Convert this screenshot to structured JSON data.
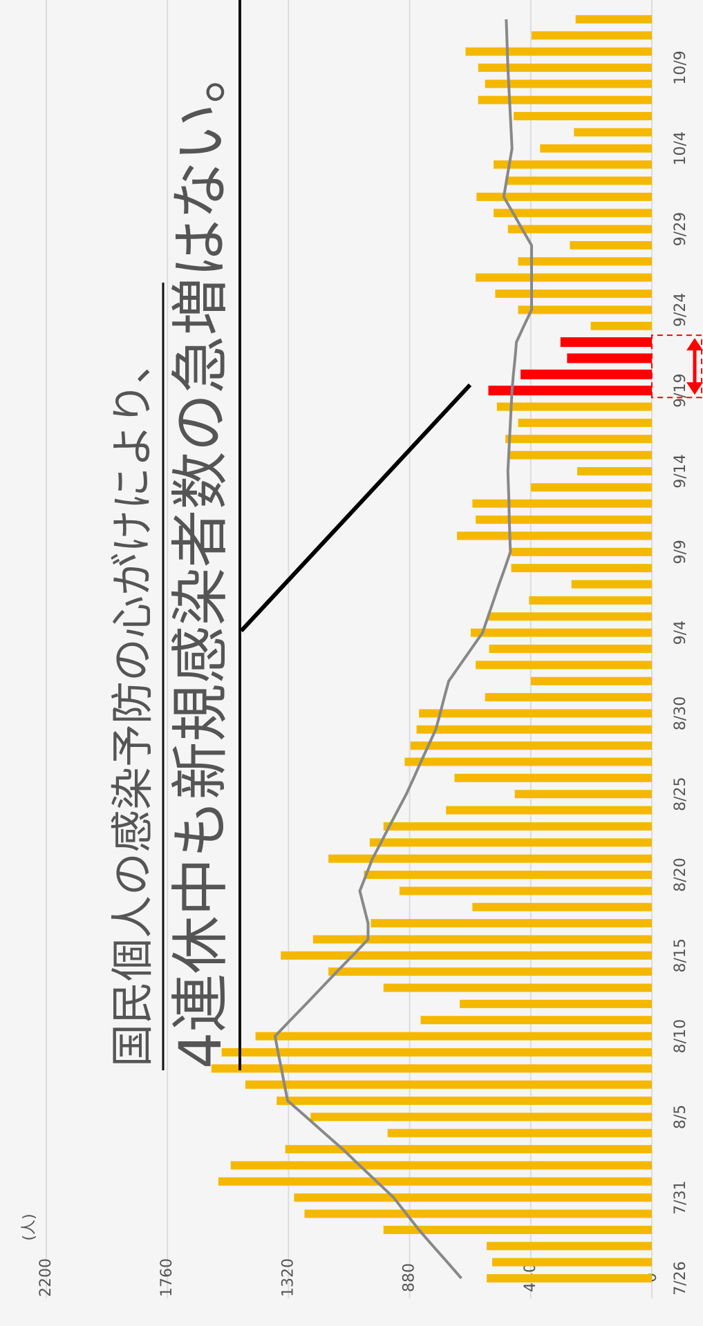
{
  "chart_data": {
    "type": "bar",
    "y_label": "(人)",
    "annotations": [
      "国民個人の感染予防の心がけにより、",
      "4連休中も新規感染者数の急増はない。"
    ],
    "categories": [
      "7/26",
      null,
      null,
      null,
      null,
      "7/31",
      null,
      null,
      null,
      null,
      "8/5",
      null,
      null,
      null,
      null,
      "8/10",
      null,
      null,
      null,
      null,
      "8/15",
      null,
      null,
      null,
      null,
      "8/20",
      null,
      null,
      null,
      null,
      "8/25",
      null,
      null,
      null,
      null,
      "8/30",
      null,
      null,
      null,
      null,
      "9/4",
      null,
      null,
      null,
      null,
      "9/9",
      null,
      null,
      null,
      null,
      "9/14",
      null,
      null,
      null,
      null,
      "9/19",
      null,
      null,
      null,
      null,
      "9/24",
      null,
      null,
      null,
      null,
      "9/29",
      null,
      null,
      null,
      null,
      "10/4",
      null,
      null,
      null,
      null,
      "10/9",
      null,
      null,
      null
    ],
    "values": [
      600,
      580,
      600,
      975,
      1262,
      1300,
      1575,
      1530,
      1332,
      960,
      1240,
      1363,
      1477,
      1600,
      1563,
      1440,
      840,
      698,
      975,
      1175,
      1348,
      1231,
      1021,
      652,
      917,
      1046,
      1175,
      1025,
      975,
      748,
      498,
      717,
      898,
      877,
      855,
      846,
      606,
      440,
      640,
      591,
      658,
      594,
      446,
      292,
      511,
      511,
      708,
      640,
      652,
      440,
      271,
      523,
      532,
      486,
      563,
      594,
      477,
      308,
      332,
      222,
      486,
      569,
      640,
      486,
      298,
      523,
      575,
      637,
      532,
      575,
      406,
      283,
      502,
      631,
      606,
      631,
      677,
      437,
      277
    ],
    "color": "#f5b800",
    "highlight": {
      "start": 55,
      "end": 58,
      "color": "#ff0000"
    },
    "line": {
      "color": "#888888",
      "values": [
        692,
        743,
        795,
        846,
        892,
        938,
        1000,
        1062,
        1123,
        1190,
        1256,
        1323,
        1335,
        1346,
        1358,
        1369,
        1313,
        1256,
        1200,
        1144,
        1087,
        1031,
        1031,
        1046,
        1061,
        1038,
        1015,
        984,
        954,
        923,
        892,
        865,
        839,
        812,
        785,
        769,
        754,
        738,
        697,
        656,
        615,
        595,
        575,
        555,
        534,
        514,
        516,
        518,
        519,
        521,
        523,
        520,
        517,
        514,
        511,
        508,
        503,
        497,
        492,
        465,
        437,
        437,
        437,
        437,
        437,
        471,
        504,
        538,
        528,
        518,
        508,
        511,
        514,
        517,
        520,
        523,
        525,
        527,
        529
      ]
    },
    "ylim": [
      0,
      2200
    ],
    "yticks": [
      0,
      440,
      880,
      1320,
      1760,
      2200
    ],
    "grid": true
  }
}
